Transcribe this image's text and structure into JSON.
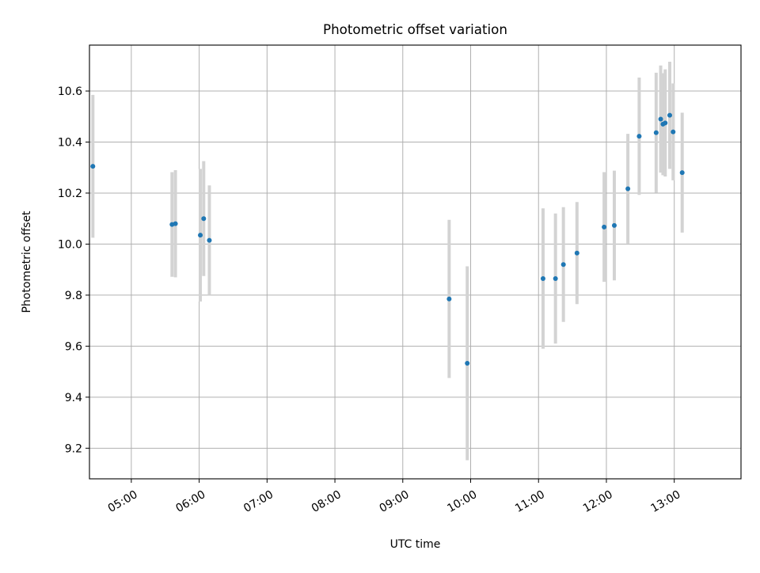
{
  "chart_data": {
    "type": "scatter",
    "title": "Photometric offset variation",
    "xlabel": "UTC time",
    "ylabel": "Photometric offset",
    "x_ticks": [
      "05:00",
      "06:00",
      "07:00",
      "08:00",
      "09:00",
      "10:00",
      "11:00",
      "12:00",
      "13:00"
    ],
    "y_ticks": [
      "9.2",
      "9.4",
      "9.6",
      "9.8",
      "10.0",
      "10.2",
      "10.4",
      "10.6"
    ],
    "xlim": [
      "04:23",
      "13:59"
    ],
    "ylim": [
      9.08,
      10.78
    ],
    "grid": true,
    "colors": {
      "point": "#1f77b4",
      "errorbar": "#d3d3d3"
    },
    "series": [
      {
        "points": [
          {
            "x": "04:26",
            "y": 10.305,
            "yerr": 0.28
          },
          {
            "x": "05:36",
            "y": 10.077,
            "yerr": 0.205
          },
          {
            "x": "05:39",
            "y": 10.08,
            "yerr": 0.21
          },
          {
            "x": "06:01",
            "y": 10.035,
            "yerr": 0.26
          },
          {
            "x": "06:04",
            "y": 10.1,
            "yerr": 0.225
          },
          {
            "x": "06:09",
            "y": 10.015,
            "yerr": 0.215
          },
          {
            "x": "09:41",
            "y": 9.785,
            "yerr": 0.31
          },
          {
            "x": "09:57",
            "y": 9.533,
            "yerr": 0.38
          },
          {
            "x": "11:04",
            "y": 9.865,
            "yerr": 0.275
          },
          {
            "x": "11:15",
            "y": 9.865,
            "yerr": 0.255
          },
          {
            "x": "11:22",
            "y": 9.92,
            "yerr": 0.225
          },
          {
            "x": "11:34",
            "y": 9.965,
            "yerr": 0.2
          },
          {
            "x": "11:58",
            "y": 10.067,
            "yerr": 0.215
          },
          {
            "x": "12:07",
            "y": 10.073,
            "yerr": 0.215
          },
          {
            "x": "12:19",
            "y": 10.217,
            "yerr": 0.215
          },
          {
            "x": "12:29",
            "y": 10.423,
            "yerr": 0.23
          },
          {
            "x": "12:44",
            "y": 10.437,
            "yerr": 0.235
          },
          {
            "x": "12:48",
            "y": 10.49,
            "yerr": 0.21
          },
          {
            "x": "12:50",
            "y": 10.47,
            "yerr": 0.2
          },
          {
            "x": "12:52",
            "y": 10.475,
            "yerr": 0.21
          },
          {
            "x": "12:56",
            "y": 10.505,
            "yerr": 0.21
          },
          {
            "x": "12:59",
            "y": 10.44,
            "yerr": 0.19
          },
          {
            "x": "13:07",
            "y": 10.28,
            "yerr": 0.235
          }
        ]
      }
    ]
  }
}
